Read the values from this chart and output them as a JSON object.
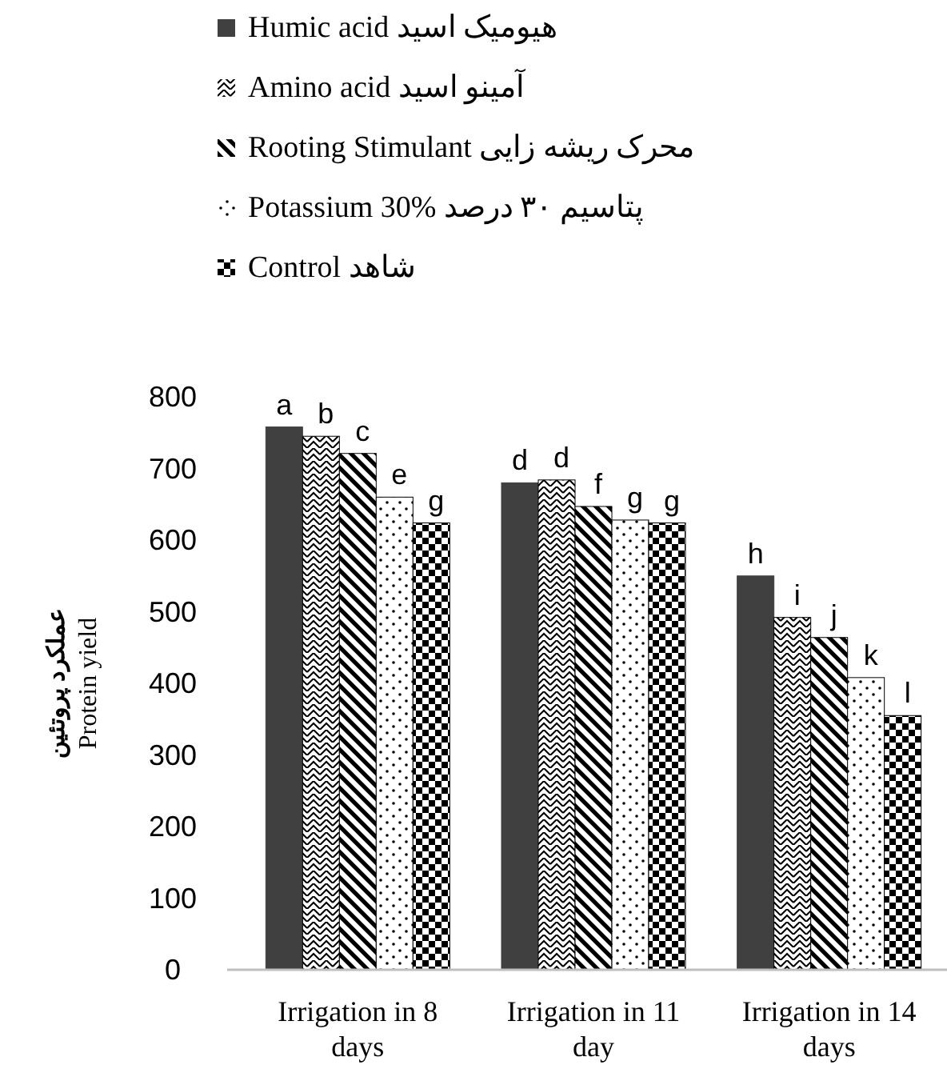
{
  "chart_data": {
    "type": "bar",
    "ylabel": "عملکرد پروتئین\nProtein yield",
    "categories": [
      "Irrigation in 8 days",
      "Irrigation in 11 day",
      "Irrigation in 14 days"
    ],
    "series": [
      {
        "name": "Humic acid هیومیک اسید",
        "color": "#404040",
        "values": [
          758,
          680,
          550
        ],
        "value_labels": [
          "a",
          "d",
          "h"
        ]
      },
      {
        "name": "Amino acid آمینو اسید",
        "color": "#000000",
        "values": [
          745,
          684,
          492
        ],
        "value_labels": [
          "b",
          "d",
          "i"
        ]
      },
      {
        "name": "Rooting Stimulant محرک ریشه زایی",
        "color": "#000000",
        "values": [
          721,
          647,
          464
        ],
        "value_labels": [
          "c",
          "f",
          "j"
        ]
      },
      {
        "name": "Potassium 30% پتاسیم ۳۰ درصد",
        "color": "#000000",
        "values": [
          660,
          628,
          408
        ],
        "value_labels": [
          "e",
          "g",
          "k"
        ]
      },
      {
        "name": "Control شاهد",
        "color": "#000000",
        "values": [
          624,
          624,
          355
        ],
        "value_labels": [
          "g",
          "g",
          "l"
        ]
      }
    ],
    "ylim": [
      0,
      800
    ],
    "yticks": [
      0,
      100,
      200,
      300,
      400,
      500,
      600,
      700,
      800
    ],
    "grid": false,
    "legend": "top"
  }
}
